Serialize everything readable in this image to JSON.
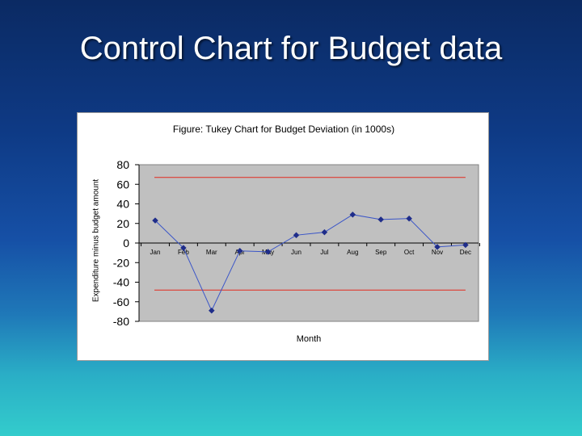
{
  "slide": {
    "title": "Control Chart for Budget data"
  },
  "chart_data": {
    "type": "line",
    "title": "Figure:  Tukey Chart for Budget Deviation (in 1000s)",
    "xlabel": "Month",
    "ylabel": "Expenditure minus budget amount",
    "categories": [
      "Jan",
      "Feb",
      "Mar",
      "Apr",
      "May",
      "Jun",
      "Jul",
      "Aug",
      "Sep",
      "Oct",
      "Nov",
      "Dec"
    ],
    "series": [
      {
        "values": [
          23,
          -5,
          -69,
          -8,
          -9,
          8,
          11,
          29,
          24,
          25,
          -4,
          -2
        ],
        "color": "#1f2d8a"
      }
    ],
    "control_limits": {
      "upper": 67,
      "lower": -48,
      "color": "#e32b1e"
    },
    "yticks": [
      "80",
      "60",
      "40",
      "20",
      "0",
      "-20",
      "-40",
      "-60",
      "-80"
    ],
    "ylim": [
      -80,
      80
    ],
    "plot_background": "#c0c0c0",
    "grid": false,
    "legend": "none"
  }
}
